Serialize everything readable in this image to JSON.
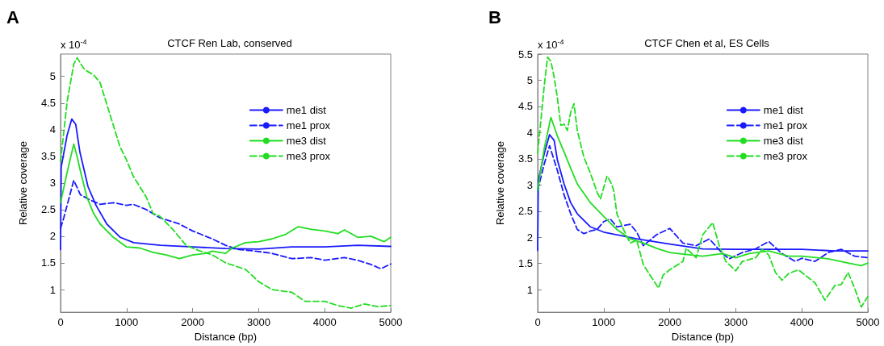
{
  "chart_data": [
    {
      "type": "line",
      "title": "CTCF Ren Lab, conserved",
      "xlabel": "Distance (bp)",
      "ylabel": "Relative coverage",
      "annotations": [
        "A",
        "x 10$^{-4}$"
      ],
      "xlim": [
        0,
        5000
      ],
      "xticks": [
        0,
        1000,
        2000,
        3000,
        4000,
        5000
      ],
      "ylim": [
        0.575,
        5.42
      ],
      "yticks": [
        1,
        1.5,
        2,
        2.5,
        3,
        3.5,
        4,
        4.5,
        5
      ],
      "grid": false,
      "legend": "top right",
      "marker": "none",
      "series": [
        {
          "name": "me1 dist",
          "color": "#1a1aff",
          "line_style": "solid",
          "x": [
            0,
            10,
            100,
            170,
            230,
            293,
            416,
            538,
            700,
            905,
            1108,
            1516,
            2000,
            2500,
            3000,
            3500,
            4000,
            4500,
            5000
          ],
          "values": [
            1.75,
            3.3,
            3.9,
            4.2,
            4.1,
            3.58,
            2.93,
            2.58,
            2.23,
            1.98,
            1.88,
            1.83,
            1.8,
            1.77,
            1.76,
            1.8,
            1.8,
            1.83,
            1.81
          ]
        },
        {
          "name": "me1 prox",
          "color": "#1a1aff",
          "line_style": "dashed",
          "x": [
            0,
            50,
            200,
            300,
            450,
            600,
            800,
            1000,
            1100,
            1300,
            1500,
            1800,
            2000,
            2300,
            2500,
            2700,
            2900,
            3200,
            3500,
            3800,
            4000,
            4300,
            4500,
            4700,
            4850,
            5000
          ],
          "values": [
            2.15,
            2.35,
            3.05,
            2.78,
            2.68,
            2.6,
            2.63,
            2.58,
            2.6,
            2.5,
            2.35,
            2.23,
            2.1,
            1.95,
            1.83,
            1.75,
            1.73,
            1.68,
            1.58,
            1.6,
            1.55,
            1.6,
            1.55,
            1.47,
            1.39,
            1.48
          ]
        },
        {
          "name": "me3 dist",
          "color": "#22dd22",
          "line_style": "solid",
          "x": [
            0,
            100,
            200,
            250,
            300,
            400,
            500,
            600,
            800,
            1000,
            1200,
            1400,
            1600,
            1800,
            2000,
            2200,
            2300,
            2500,
            2600,
            2800,
            3000,
            3200,
            3400,
            3600,
            3800,
            4000,
            4200,
            4300,
            4500,
            4700,
            4900,
            5000
          ],
          "values": [
            2.63,
            3.2,
            3.73,
            3.5,
            3.23,
            2.73,
            2.43,
            2.23,
            1.98,
            1.8,
            1.78,
            1.7,
            1.65,
            1.58,
            1.65,
            1.68,
            1.72,
            1.68,
            1.78,
            1.88,
            1.9,
            1.95,
            2.03,
            2.18,
            2.13,
            2.1,
            2.05,
            2.12,
            1.98,
            2.0,
            1.9,
            1.98
          ]
        },
        {
          "name": "me3 prox",
          "color": "#22dd22",
          "line_style": "dashed",
          "x": [
            0,
            100,
            200,
            250,
            350,
            400,
            500,
            600,
            700,
            800,
            900,
            1000,
            1100,
            1200,
            1300,
            1400,
            1500,
            1700,
            1900,
            2100,
            2300,
            2500,
            2800,
            3000,
            3200,
            3500,
            3700,
            4000,
            4200,
            4400,
            4600,
            4800,
            5000
          ],
          "values": [
            3.4,
            4.53,
            5.23,
            5.35,
            5.15,
            5.1,
            5.03,
            4.88,
            4.48,
            4.08,
            3.68,
            3.43,
            3.13,
            2.93,
            2.73,
            2.43,
            2.38,
            2.13,
            1.83,
            1.73,
            1.65,
            1.5,
            1.38,
            1.15,
            1.0,
            0.95,
            0.78,
            0.78,
            0.7,
            0.65,
            0.73,
            0.68,
            0.7
          ]
        }
      ]
    },
    {
      "type": "line",
      "title": "CTCF Chen et al, ES Cells",
      "xlabel": "Distance (bp)",
      "ylabel": "Relative coverage",
      "annotations": [
        "B",
        "x 10$^{-4}$"
      ],
      "xlim": [
        0,
        5000
      ],
      "xticks": [
        0,
        1000,
        2000,
        3000,
        4000,
        5000
      ],
      "ylim": [
        0.57,
        5.5
      ],
      "yticks": [
        1,
        1.5,
        2,
        2.5,
        3,
        3.5,
        4,
        4.5,
        5,
        5.5
      ],
      "grid": false,
      "legend": "top right",
      "marker": "none",
      "series": [
        {
          "name": "me1 dist",
          "color": "#1a1aff",
          "line_style": "solid",
          "x": [
            0,
            10,
            100,
            180,
            250,
            300,
            400,
            500,
            600,
            800,
            1000,
            1500,
            2000,
            2500,
            3000,
            3500,
            4000,
            4500,
            5000
          ],
          "values": [
            1.75,
            3.09,
            3.6,
            3.96,
            3.85,
            3.47,
            3.02,
            2.66,
            2.45,
            2.2,
            2.1,
            1.97,
            1.87,
            1.78,
            1.77,
            1.77,
            1.77,
            1.74,
            1.74
          ]
        },
        {
          "name": "me1 prox",
          "color": "#1a1aff",
          "line_style": "dashed",
          "x": [
            0,
            100,
            180,
            300,
            400,
            500,
            600,
            700,
            800,
            900,
            1000,
            1100,
            1200,
            1400,
            1500,
            1600,
            1800,
            2000,
            2200,
            2400,
            2600,
            2800,
            2900,
            3100,
            3300,
            3500,
            3700,
            3900,
            4000,
            4200,
            4400,
            4600,
            4800,
            5000
          ],
          "values": [
            2.9,
            3.4,
            3.75,
            3.27,
            2.81,
            2.45,
            2.15,
            2.07,
            2.12,
            2.15,
            2.3,
            2.35,
            2.2,
            2.25,
            2.1,
            1.84,
            2.05,
            2.17,
            1.89,
            1.84,
            1.97,
            1.69,
            1.59,
            1.71,
            1.78,
            1.92,
            1.69,
            1.54,
            1.6,
            1.54,
            1.71,
            1.77,
            1.64,
            1.61
          ]
        },
        {
          "name": "me3 dist",
          "color": "#22dd22",
          "line_style": "solid",
          "x": [
            0,
            100,
            200,
            300,
            400,
            500,
            600,
            800,
            1000,
            1200,
            1400,
            1600,
            1800,
            2000,
            2200,
            2500,
            2800,
            3000,
            3200,
            3500,
            3800,
            4000,
            4400,
            4700,
            4900,
            5000
          ],
          "values": [
            2.9,
            3.7,
            4.29,
            3.93,
            3.63,
            3.32,
            3.02,
            2.66,
            2.4,
            2.15,
            1.97,
            1.89,
            1.79,
            1.71,
            1.68,
            1.64,
            1.69,
            1.61,
            1.69,
            1.74,
            1.64,
            1.64,
            1.59,
            1.51,
            1.46,
            1.51
          ]
        },
        {
          "name": "me3 prox",
          "color": "#22dd22",
          "line_style": "dashed",
          "x": [
            0,
            100,
            150,
            200,
            250,
            300,
            350,
            400,
            450,
            500,
            550,
            600,
            700,
            800,
            900,
            950,
            1050,
            1100,
            1150,
            1200,
            1300,
            1400,
            1500,
            1600,
            1700,
            1830,
            1900,
            2000,
            2200,
            2250,
            2400,
            2500,
            2650,
            2750,
            2850,
            3000,
            3100,
            3300,
            3400,
            3500,
            3600,
            3700,
            3800,
            3950,
            4100,
            4200,
            4350,
            4500,
            4600,
            4700,
            4800,
            4900,
            5000
          ],
          "values": [
            3.6,
            4.9,
            5.44,
            5.36,
            5.06,
            4.65,
            4.14,
            4.16,
            4.04,
            4.39,
            4.55,
            4.04,
            3.53,
            3.22,
            2.86,
            2.73,
            3.17,
            3.07,
            2.91,
            2.45,
            2.15,
            1.89,
            1.94,
            1.48,
            1.28,
            1.03,
            1.28,
            1.38,
            1.54,
            1.79,
            1.61,
            2.05,
            2.28,
            1.84,
            1.54,
            1.36,
            1.54,
            1.61,
            1.77,
            1.66,
            1.33,
            1.18,
            1.31,
            1.38,
            1.23,
            1.13,
            0.8,
            1.08,
            1.1,
            1.33,
            1.03,
            0.67,
            0.87
          ]
        }
      ]
    }
  ]
}
